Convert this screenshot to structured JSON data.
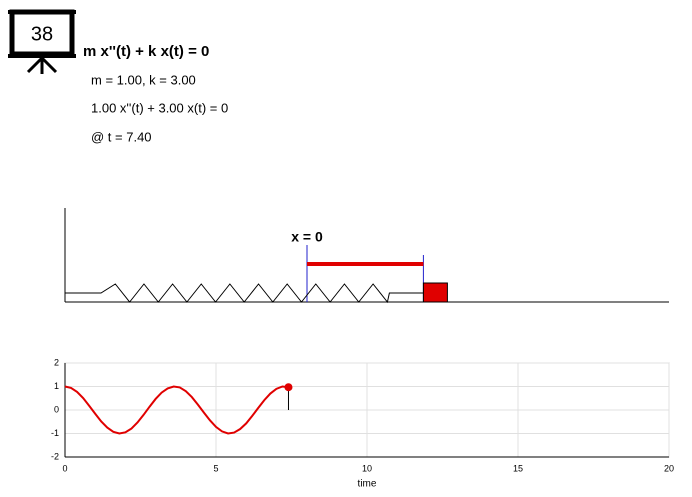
{
  "icon": {
    "label": "38"
  },
  "header": {
    "title": "m x''(t) + k x(t) = 0",
    "params": "m = 1.00, k = 3.00",
    "equation": "1.00 x''(t) + 3.00 x(t) = 0",
    "time": "@ t = 7.40"
  },
  "scene": {
    "origin_label": "x = 0"
  },
  "chart_data": {
    "type": "line",
    "xlabel": "time",
    "x": [
      0,
      0.2,
      0.4,
      0.6,
      0.8,
      1.0,
      1.2,
      1.4,
      1.6,
      1.8,
      2.0,
      2.2,
      2.4,
      2.6,
      2.8,
      3.0,
      3.2,
      3.4,
      3.6,
      3.8,
      4.0,
      4.2,
      4.4,
      4.6,
      4.8,
      5.0,
      5.2,
      5.4,
      5.6,
      5.8,
      6.0,
      6.2,
      6.4,
      6.6,
      6.8,
      7.0,
      7.2,
      7.4
    ],
    "series": [
      {
        "color": "#e00000",
        "values": [
          1,
          0.94,
          0.77,
          0.51,
          0.18,
          -0.16,
          -0.49,
          -0.75,
          -0.93,
          -1.0,
          -0.95,
          -0.79,
          -0.53,
          -0.21,
          0.14,
          0.47,
          0.74,
          0.92,
          1.0,
          0.96,
          0.8,
          0.55,
          0.23,
          -0.11,
          -0.44,
          -0.72,
          -0.91,
          -1.0,
          -0.96,
          -0.81,
          -0.57,
          -0.25,
          0.09,
          0.42,
          0.7,
          0.9,
          1.0,
          0.97
        ]
      }
    ],
    "xlim": [
      0,
      20
    ],
    "ylim": [
      -2,
      2
    ],
    "xticks": [
      0,
      5,
      10,
      15,
      20
    ],
    "yticks": [
      -2,
      -1,
      0,
      1,
      2
    ],
    "grid": true
  }
}
